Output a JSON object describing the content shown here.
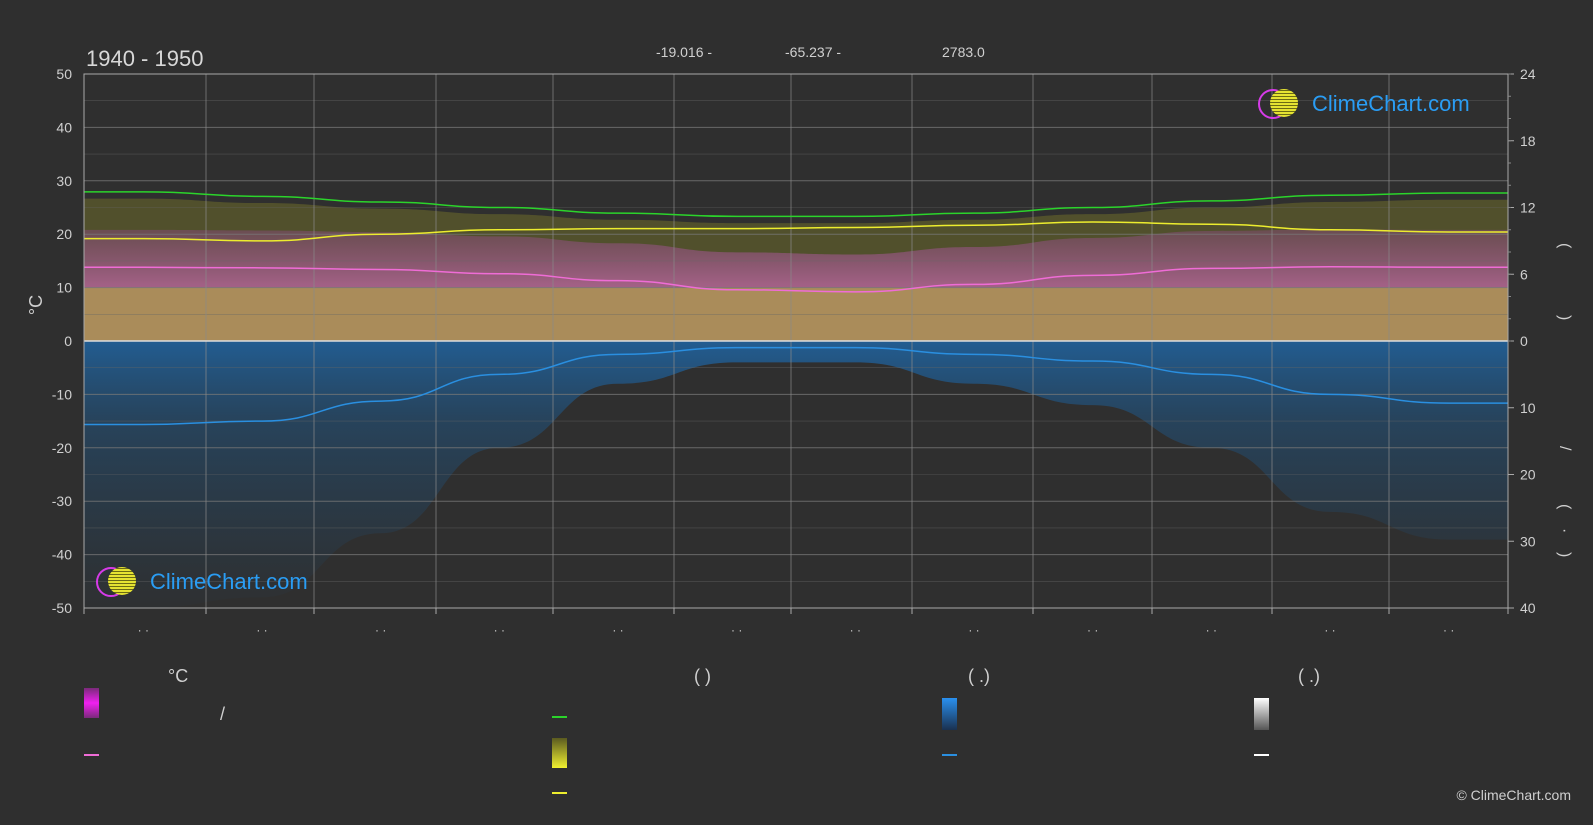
{
  "header": {
    "period": "1940 - 1950",
    "latitude": "-19.016 -",
    "longitude": "-65.237 -",
    "elevation": "2783.0"
  },
  "copyright": "© ClimeChart.com",
  "logo_text": "ClimeChart.com",
  "colors": {
    "background": "#2f2f2f",
    "sunshine": "#2bd42b",
    "daylight": "#eded2e",
    "temperature": "#ef6cd6",
    "precipitation": "#2a8fe0",
    "temperature_band": "#c95bb0",
    "sun_band": "#9a9a2c",
    "precip_band": "#1f5f94"
  },
  "chart_data": {
    "type": "line",
    "ylabel_left": "°C",
    "y_left_range": [
      -50,
      50
    ],
    "y_left_ticks": [
      "50",
      "40",
      "30",
      "20",
      "10",
      "0",
      "-10",
      "-20",
      "-30",
      "-40",
      "-50"
    ],
    "y_right_top_ticks": [
      "24",
      "18",
      "12",
      "6",
      "0"
    ],
    "y_right_bottom_ticks": [
      "10",
      "20",
      "30",
      "40"
    ],
    "right_axis_glyphs": [
      "(",
      ")",
      "/",
      "(",
      "·",
      ")"
    ],
    "x_tick_labels": [
      "· ·",
      "· ·",
      "· ·",
      "· ·",
      "· ·",
      "· ·",
      "· ·",
      "· ·",
      "· ·",
      "· ·",
      "· ·",
      "· ·"
    ],
    "sunshine_hours": [
      13.4,
      13.0,
      12.5,
      12.0,
      11.5,
      11.2,
      11.2,
      11.5,
      12.0,
      12.6,
      13.1,
      13.3
    ],
    "daylight_hours": [
      9.2,
      9.0,
      9.6,
      10.0,
      10.1,
      10.1,
      10.2,
      10.4,
      10.7,
      10.5,
      10.0,
      9.8
    ],
    "mean_temperature_c": [
      13.8,
      13.7,
      13.4,
      12.6,
      11.3,
      9.6,
      9.2,
      10.6,
      12.3,
      13.6,
      13.9,
      13.8
    ],
    "precipitation_mm": [
      12.5,
      12.0,
      9.0,
      5.0,
      2.0,
      1.0,
      1.0,
      2.0,
      3.0,
      5.0,
      8.0,
      9.3
    ]
  },
  "legend": {
    "col1": {
      "heading": "°C",
      "row1_text": "/"
    },
    "col2": {
      "heading": "(              )"
    },
    "col3": {
      "heading": "(    .)"
    },
    "col4": {
      "heading": "(    .)"
    }
  }
}
